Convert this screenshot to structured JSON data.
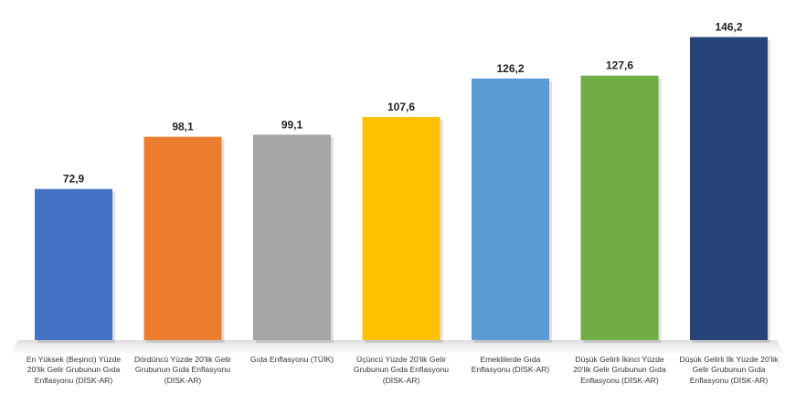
{
  "chart_data": {
    "type": "bar",
    "title": "",
    "xlabel": "",
    "ylabel": "",
    "ylim": [
      0,
      150
    ],
    "grid": false,
    "legend": "none",
    "categories": [
      "En Yüksek (Beşinci) Yüzde 20'lik Gelir Grubunun Gıda Enflasyonu (DİSK-AR)",
      "Dördüncü Yüzde 20'lik Gelir Grubunun Gıda Enflasyonu (DİSK-AR)",
      "Gıda Enflasyonu (TÜİK)",
      "Üçüncü Yüzde 20'lik Gelir Grubunun Gıda Enflasyonu (DİSK-AR)",
      "Emeklilerde Gıda Enflasyonu (DİSK-AR)",
      "Düşük Gelirli İkinci Yüzde 20'lik Gelir Grubunun Gıda Enflasyonu (DİSK-AR)",
      "Düşük Gelirli İlk Yüzde 20'lik Gelir Grubunun Gıda Enflasyonu (DİSK-AR)"
    ],
    "values": [
      72.9,
      98.1,
      99.1,
      107.6,
      126.2,
      127.6,
      146.2
    ],
    "value_labels": [
      "72,9",
      "98,1",
      "99,1",
      "107,6",
      "126,2",
      "127,6",
      "146,2"
    ],
    "colors": [
      "#4472C4",
      "#ED7D31",
      "#A5A5A5",
      "#FFC000",
      "#5B9BD5",
      "#70AD47",
      "#264478"
    ]
  }
}
